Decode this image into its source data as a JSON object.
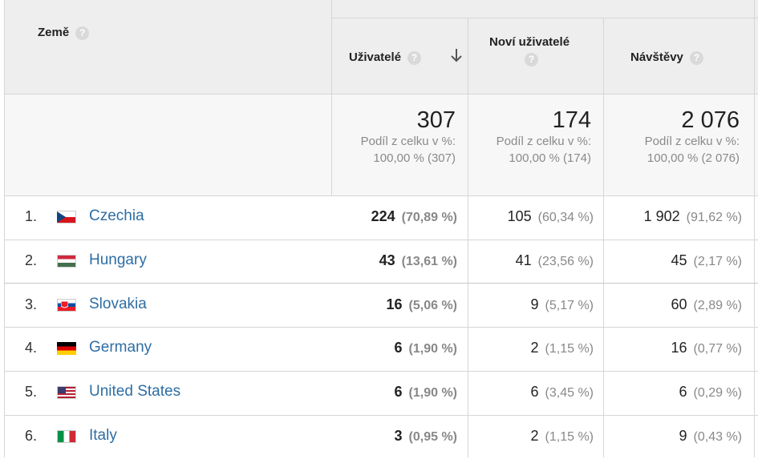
{
  "header": {
    "country": "Země",
    "users": "Uživatelé",
    "new_users": "Noví uživatelé",
    "sessions": "Návštěvy",
    "help_glyph": "?"
  },
  "totals": {
    "users": {
      "value": "307",
      "label": "Podíl z celku v %:",
      "detail": "100,00 % (307)"
    },
    "new_users": {
      "value": "174",
      "label": "Podíl z celku v %:",
      "detail": "100,00 % (174)"
    },
    "sessions": {
      "value": "2 076",
      "label": "Podíl z celku v %:",
      "detail": "100,00 % (2 076)"
    }
  },
  "rows": [
    {
      "num": "1.",
      "country": "Czechia",
      "flag": "flag-czechia",
      "users": "224",
      "users_pct": "(70,89 %)",
      "new": "105",
      "new_pct": "(60,34 %)",
      "sessions": "1 902",
      "sessions_pct": "(91,62 %)"
    },
    {
      "num": "2.",
      "country": "Hungary",
      "flag": "flag-hungary",
      "users": "43",
      "users_pct": "(13,61 %)",
      "new": "41",
      "new_pct": "(23,56 %)",
      "sessions": "45",
      "sessions_pct": "(2,17 %)"
    },
    {
      "num": "3.",
      "country": "Slovakia",
      "flag": "flag-slovakia",
      "users": "16",
      "users_pct": "(5,06 %)",
      "new": "9",
      "new_pct": "(5,17 %)",
      "sessions": "60",
      "sessions_pct": "(2,89 %)"
    },
    {
      "num": "4.",
      "country": "Germany",
      "flag": "flag-germany",
      "users": "6",
      "users_pct": "(1,90 %)",
      "new": "2",
      "new_pct": "(1,15 %)",
      "sessions": "16",
      "sessions_pct": "(0,77 %)"
    },
    {
      "num": "5.",
      "country": "United States",
      "flag": "flag-united-states",
      "users": "6",
      "users_pct": "(1,90 %)",
      "new": "6",
      "new_pct": "(3,45 %)",
      "sessions": "6",
      "sessions_pct": "(0,29 %)"
    },
    {
      "num": "6.",
      "country": "Italy",
      "flag": "flag-italy",
      "users": "3",
      "users_pct": "(0,95 %)",
      "new": "2",
      "new_pct": "(1,15 %)",
      "sessions": "9",
      "sessions_pct": "(0,43 %)"
    }
  ],
  "colors": {
    "link": "#2e6da4",
    "header_bg": "#eeeeee",
    "totals_bg": "#f7f7f7",
    "border": "#d6d6d6"
  }
}
